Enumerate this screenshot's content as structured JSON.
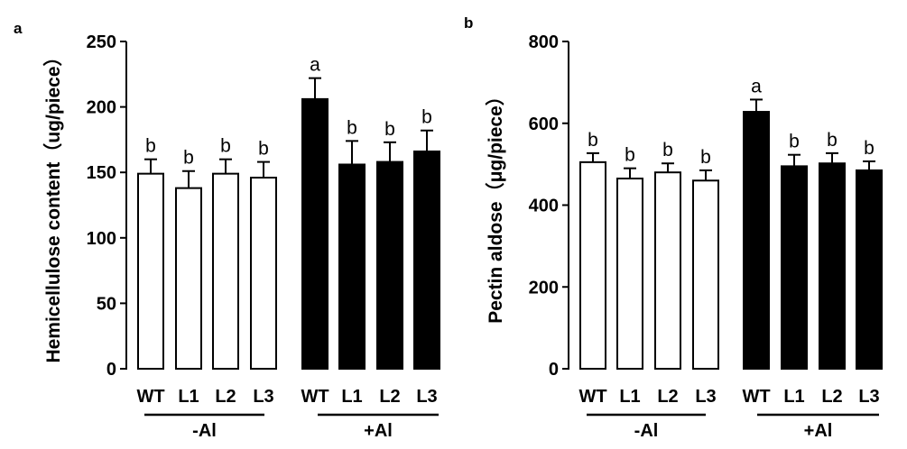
{
  "chart_data": [
    {
      "type": "bar",
      "panel": "a",
      "title": "",
      "xlabel": "",
      "ylabel": "Hemicellulose content（ug/piece）",
      "ylim": [
        0,
        250
      ],
      "yticks": [
        0,
        50,
        100,
        150,
        200,
        250
      ],
      "categories": [
        "WT",
        "L1",
        "L2",
        "L3",
        "WT",
        "L1",
        "L2",
        "L3"
      ],
      "groups": [
        {
          "label": "-Al",
          "fill": "#ffffff",
          "indices": [
            0,
            1,
            2,
            3
          ]
        },
        {
          "label": "+Al",
          "fill": "#000000",
          "indices": [
            4,
            5,
            6,
            7
          ]
        }
      ],
      "values": [
        149,
        138,
        149,
        146,
        206,
        156,
        158,
        166
      ],
      "errors": [
        11,
        13,
        11,
        12,
        16,
        18,
        15,
        16
      ],
      "significance": [
        "b",
        "b",
        "b",
        "b",
        "a",
        "b",
        "b",
        "b"
      ],
      "grid": false
    },
    {
      "type": "bar",
      "panel": "b",
      "title": "",
      "xlabel": "",
      "ylabel": "Pectin aldose（μg/piece）",
      "ylim": [
        0,
        800
      ],
      "yticks": [
        0,
        200,
        400,
        600,
        800
      ],
      "categories": [
        "WT",
        "L1",
        "L2",
        "L3",
        "WT",
        "L1",
        "L2",
        "L3"
      ],
      "groups": [
        {
          "label": "-Al",
          "fill": "#ffffff",
          "indices": [
            0,
            1,
            2,
            3
          ]
        },
        {
          "label": "+Al",
          "fill": "#000000",
          "indices": [
            4,
            5,
            6,
            7
          ]
        }
      ],
      "values": [
        505,
        465,
        480,
        460,
        628,
        495,
        502,
        485
      ],
      "errors": [
        22,
        25,
        22,
        25,
        30,
        28,
        25,
        22
      ],
      "significance": [
        "b",
        "b",
        "b",
        "b",
        "a",
        "b",
        "b",
        "b"
      ],
      "grid": false
    }
  ]
}
